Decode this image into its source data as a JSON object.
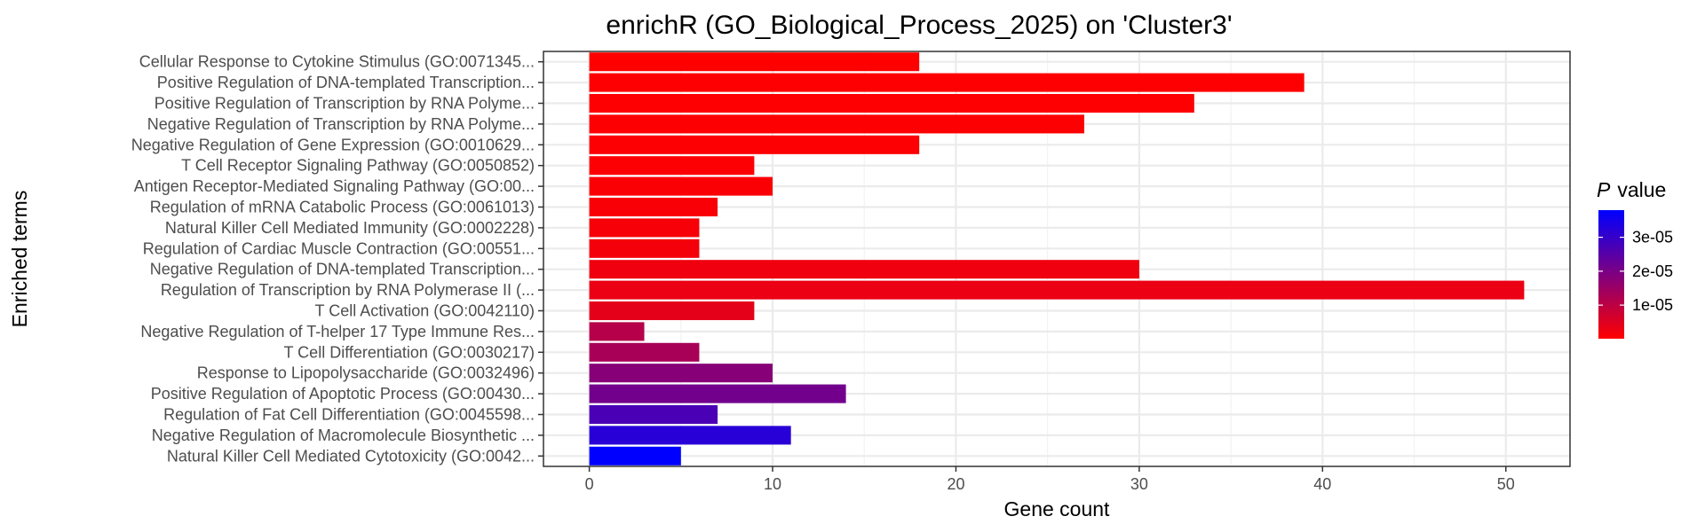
{
  "chart_data": {
    "type": "bar",
    "orientation": "horizontal",
    "title": "enrichR (GO_Biological_Process_2025) on 'Cluster3'",
    "xlabel": "Gene count",
    "ylabel": "Enriched terms",
    "xlim": [
      -2.5,
      53.5
    ],
    "xticks": [
      0,
      10,
      20,
      30,
      40,
      50
    ],
    "xtick_labels": [
      "0",
      "10",
      "20",
      "30",
      "40",
      "50"
    ],
    "grid": true,
    "legend": {
      "title_italic": "P",
      "title_rest": "value",
      "placement": "right",
      "range": [
        1e-07,
        3.8e-05
      ],
      "breaks": [
        1e-05,
        2e-05,
        3e-05
      ],
      "break_labels": [
        "1e-05",
        "2e-05",
        "3e-05"
      ],
      "low_color": "#ff0000",
      "high_color": "#0000ff"
    },
    "categories": [
      "Cellular Response to Cytokine Stimulus (GO:0071345...",
      "Positive Regulation of DNA-templated Transcription...",
      "Positive Regulation of Transcription by RNA Polyme...",
      "Negative Regulation of Transcription by RNA Polyme...",
      "Negative Regulation of Gene Expression (GO:0010629...",
      "T Cell Receptor Signaling Pathway (GO:0050852)",
      "Antigen Receptor-Mediated Signaling Pathway (GO:00...",
      "Regulation of mRNA Catabolic Process (GO:0061013)",
      "Natural Killer Cell Mediated Immunity (GO:0002228)",
      "Regulation of Cardiac Muscle Contraction (GO:00551...",
      "Negative Regulation of DNA-templated Transcription...",
      "Regulation of Transcription by RNA Polymerase II (...",
      "T Cell Activation (GO:0042110)",
      "Negative Regulation of T-helper 17 Type Immune Res...",
      "T Cell Differentiation (GO:0030217)",
      "Response to Lipopolysaccharide (GO:0032496)",
      "Positive Regulation of Apoptotic Process (GO:00430...",
      "Regulation of Fat Cell Differentiation (GO:0045598...",
      "Negative Regulation of Macromolecule Biosynthetic ...",
      "Natural Killer Cell Mediated Cytotoxicity (GO:0042..."
    ],
    "values": [
      18,
      39,
      33,
      27,
      18,
      9,
      10,
      7,
      6,
      6,
      30,
      51,
      9,
      3,
      6,
      10,
      14,
      7,
      11,
      5
    ],
    "p_values": [
      1e-07,
      2e-07,
      3e-07,
      4e-07,
      5e-07,
      6e-07,
      8e-07,
      1e-06,
      1.3e-06,
      1.7e-06,
      2.3e-06,
      3e-06,
      4e-06,
      1.1e-05,
      1.3e-05,
      1.8e-05,
      2.1e-05,
      2.7e-05,
      3.2e-05,
      3.8e-05
    ]
  }
}
